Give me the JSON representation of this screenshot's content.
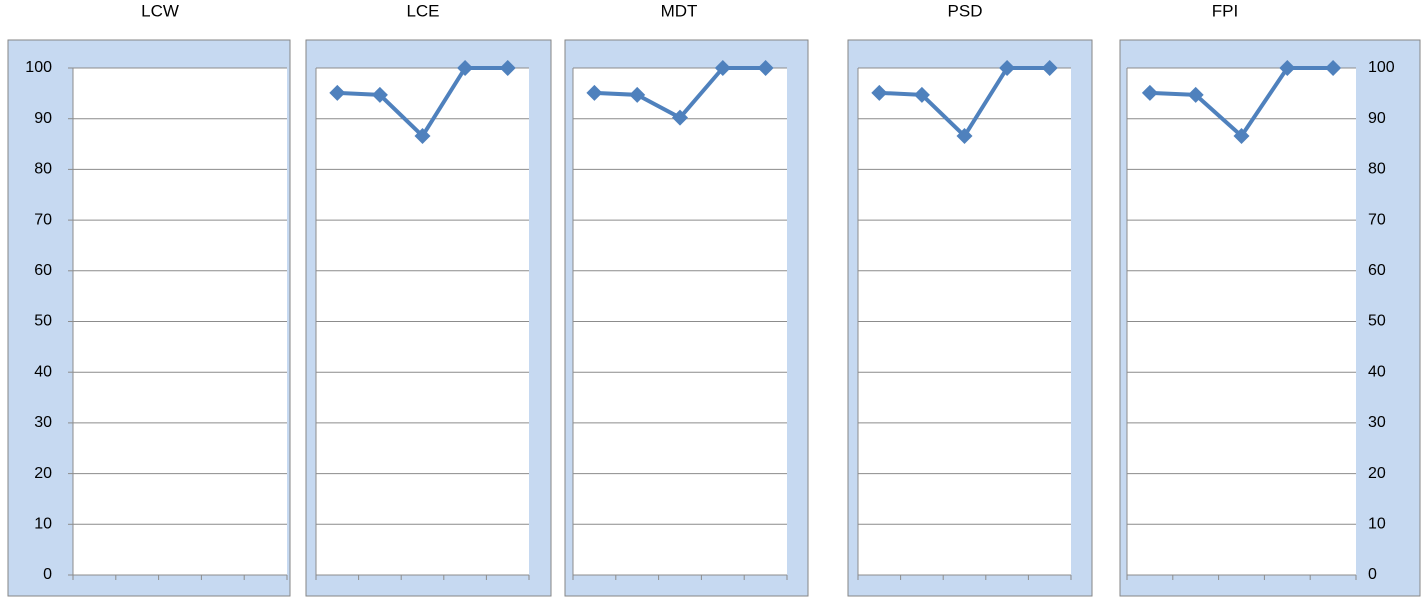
{
  "chart_data": [
    {
      "type": "line",
      "title": "LCW",
      "categories": [
        null,
        null,
        null,
        null,
        null
      ],
      "values": [
        null,
        null,
        null,
        null,
        null
      ],
      "color": "#4f81bd",
      "ylim": [
        0,
        100
      ],
      "yticks": [
        0,
        10,
        20,
        30,
        40,
        50,
        60,
        70,
        80,
        90,
        100
      ],
      "ytick_side": "left",
      "grid": true
    },
    {
      "type": "line",
      "title": "LCE",
      "categories": [
        null,
        null,
        null,
        null,
        null
      ],
      "values": [
        95.1,
        94.7,
        86.6,
        100,
        100
      ],
      "color": "#4f81bd",
      "ylim": [
        0,
        100
      ],
      "yticks": [
        0,
        10,
        20,
        30,
        40,
        50,
        60,
        70,
        80,
        90,
        100
      ],
      "ytick_side": "none",
      "grid": true
    },
    {
      "type": "line",
      "title": "MDT",
      "categories": [
        null,
        null,
        null,
        null,
        null
      ],
      "values": [
        95.1,
        94.7,
        90.2,
        100,
        100
      ],
      "color": "#4f81bd",
      "ylim": [
        0,
        100
      ],
      "yticks": [
        0,
        10,
        20,
        30,
        40,
        50,
        60,
        70,
        80,
        90,
        100
      ],
      "ytick_side": "none",
      "grid": true
    },
    {
      "type": "line",
      "title": "PSD",
      "categories": [
        null,
        null,
        null,
        null,
        null
      ],
      "values": [
        95.1,
        94.7,
        86.6,
        100,
        100
      ],
      "color": "#4f81bd",
      "ylim": [
        0,
        100
      ],
      "yticks": [
        0,
        10,
        20,
        30,
        40,
        50,
        60,
        70,
        80,
        90,
        100
      ],
      "ytick_side": "none",
      "grid": true
    },
    {
      "type": "line",
      "title": "FPI",
      "categories": [
        null,
        null,
        null,
        null,
        null
      ],
      "values": [
        95.1,
        94.7,
        86.6,
        100,
        100
      ],
      "color": "#4f81bd",
      "ylim": [
        0,
        100
      ],
      "yticks": [
        0,
        10,
        20,
        30,
        40,
        50,
        60,
        70,
        80,
        90,
        100
      ],
      "ytick_side": "right",
      "grid": true
    }
  ]
}
